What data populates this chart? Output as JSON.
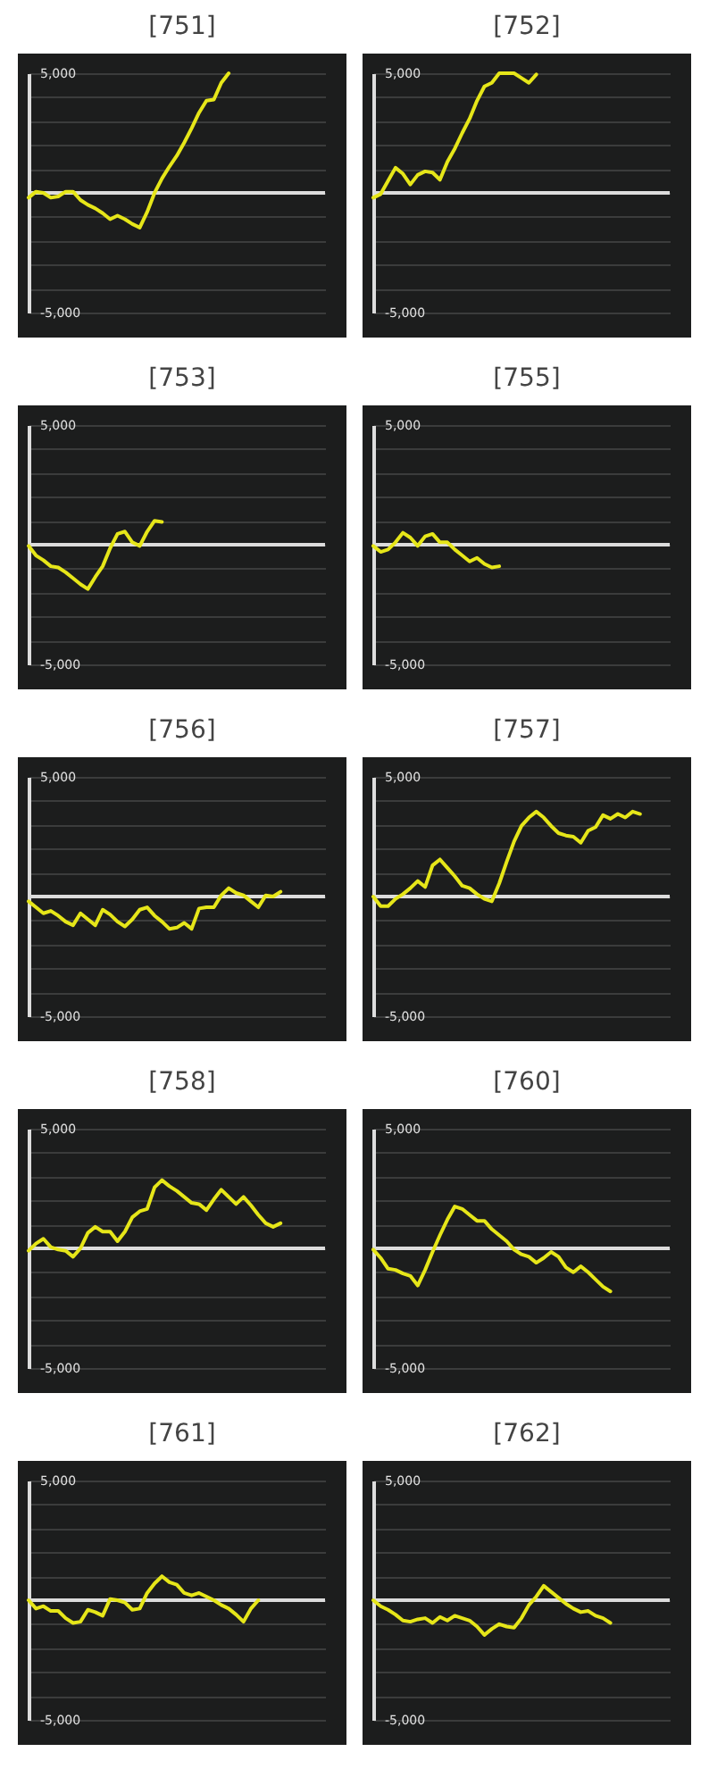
{
  "chart_data": [
    {
      "type": "line",
      "title": "[751]",
      "categories": [
        null,
        null,
        null,
        null,
        null,
        null,
        null,
        null,
        null,
        null,
        null,
        null,
        null,
        null,
        null,
        null,
        null,
        null,
        null,
        null,
        null,
        null,
        null,
        null,
        null,
        null,
        null,
        null,
        null,
        null,
        null,
        null,
        null,
        null,
        null,
        null,
        null,
        null,
        null,
        null,
        null
      ],
      "ylim": [
        -5000,
        5000
      ],
      "yticks": [
        {
          "value": -5000,
          "label": "-5,000"
        },
        {
          "value": -4000,
          "label": null
        },
        {
          "value": -3000,
          "label": null
        },
        {
          "value": -2000,
          "label": null
        },
        {
          "value": -1000,
          "label": null
        },
        {
          "value": 0,
          "label": null
        },
        {
          "value": 1000,
          "label": null
        },
        {
          "value": 2000,
          "label": null
        },
        {
          "value": 3000,
          "label": null
        },
        {
          "value": 4000,
          "label": null
        },
        {
          "value": 5000,
          "label": "5,000"
        }
      ],
      "grid": "y",
      "tick_labels": "y",
      "ref_lines": [
        {
          "axis": "y",
          "value": 0,
          "color": "#dcdcdc"
        }
      ],
      "series": [
        {
          "color": "#e6e619",
          "values": [
            -200,
            50,
            0,
            -200,
            -150,
            50,
            50,
            -300,
            -500,
            -650,
            -850,
            -1100,
            -950,
            -1100,
            -1300,
            -1450,
            -800,
            0,
            600,
            1100,
            1550,
            2100,
            2700,
            3350,
            3850,
            3900,
            4600,
            5000,
            null,
            null,
            null,
            null,
            null,
            null,
            null,
            null,
            null,
            null,
            null,
            null,
            null
          ]
        }
      ]
    },
    {
      "type": "line",
      "title": "[752]",
      "categories": [
        null,
        null,
        null,
        null,
        null,
        null,
        null,
        null,
        null,
        null,
        null,
        null,
        null,
        null,
        null,
        null,
        null,
        null,
        null,
        null,
        null,
        null,
        null,
        null,
        null,
        null,
        null,
        null,
        null,
        null,
        null,
        null,
        null,
        null,
        null,
        null,
        null,
        null,
        null,
        null,
        null
      ],
      "ylim": [
        -5000,
        5000
      ],
      "yticks": [
        {
          "value": -5000,
          "label": "-5,000"
        },
        {
          "value": -4000,
          "label": null
        },
        {
          "value": -3000,
          "label": null
        },
        {
          "value": -2000,
          "label": null
        },
        {
          "value": -1000,
          "label": null
        },
        {
          "value": 0,
          "label": null
        },
        {
          "value": 1000,
          "label": null
        },
        {
          "value": 2000,
          "label": null
        },
        {
          "value": 3000,
          "label": null
        },
        {
          "value": 4000,
          "label": null
        },
        {
          "value": 5000,
          "label": "5,000"
        }
      ],
      "grid": "y",
      "tick_labels": "y",
      "ref_lines": [
        {
          "axis": "y",
          "value": 0,
          "color": "#dcdcdc"
        }
      ],
      "series": [
        {
          "color": "#e6e619",
          "values": [
            -200,
            -50,
            500,
            1050,
            800,
            350,
            750,
            900,
            850,
            550,
            1300,
            1850,
            2500,
            3100,
            3850,
            4450,
            4600,
            5000,
            5000,
            5000,
            4800,
            4600,
            4950,
            null,
            null,
            null,
            null,
            null,
            null,
            null,
            null,
            null,
            null,
            null,
            null,
            null,
            null,
            null,
            null,
            null,
            null
          ]
        }
      ]
    },
    {
      "type": "line",
      "title": "[753]",
      "categories": [
        null,
        null,
        null,
        null,
        null,
        null,
        null,
        null,
        null,
        null,
        null,
        null,
        null,
        null,
        null,
        null,
        null,
        null,
        null,
        null,
        null,
        null,
        null,
        null,
        null,
        null,
        null,
        null,
        null,
        null,
        null,
        null,
        null,
        null,
        null,
        null,
        null,
        null,
        null,
        null,
        null
      ],
      "ylim": [
        -5000,
        5000
      ],
      "yticks": [
        {
          "value": -5000,
          "label": "-5,000"
        },
        {
          "value": -4000,
          "label": null
        },
        {
          "value": -3000,
          "label": null
        },
        {
          "value": -2000,
          "label": null
        },
        {
          "value": -1000,
          "label": null
        },
        {
          "value": 0,
          "label": null
        },
        {
          "value": 1000,
          "label": null
        },
        {
          "value": 2000,
          "label": null
        },
        {
          "value": 3000,
          "label": null
        },
        {
          "value": 4000,
          "label": null
        },
        {
          "value": 5000,
          "label": "5,000"
        }
      ],
      "grid": "y",
      "tick_labels": "y",
      "ref_lines": [
        {
          "axis": "y",
          "value": 0,
          "color": "#dcdcdc"
        }
      ],
      "series": [
        {
          "color": "#e6e619",
          "values": [
            -50,
            -450,
            -650,
            -900,
            -950,
            -1150,
            -1400,
            -1650,
            -1850,
            -1350,
            -900,
            -150,
            450,
            550,
            100,
            -50,
            550,
            1000,
            950,
            null,
            null,
            null,
            null,
            null,
            null,
            null,
            null,
            null,
            null,
            null,
            null,
            null,
            null,
            null,
            null,
            null,
            null,
            null,
            null,
            null,
            null
          ]
        }
      ]
    },
    {
      "type": "line",
      "title": "[755]",
      "categories": [
        null,
        null,
        null,
        null,
        null,
        null,
        null,
        null,
        null,
        null,
        null,
        null,
        null,
        null,
        null,
        null,
        null,
        null,
        null,
        null,
        null,
        null,
        null,
        null,
        null,
        null,
        null,
        null,
        null,
        null,
        null,
        null,
        null,
        null,
        null,
        null,
        null,
        null,
        null,
        null,
        null
      ],
      "ylim": [
        -5000,
        5000
      ],
      "yticks": [
        {
          "value": -5000,
          "label": "-5,000"
        },
        {
          "value": -4000,
          "label": null
        },
        {
          "value": -3000,
          "label": null
        },
        {
          "value": -2000,
          "label": null
        },
        {
          "value": -1000,
          "label": null
        },
        {
          "value": 0,
          "label": null
        },
        {
          "value": 1000,
          "label": null
        },
        {
          "value": 2000,
          "label": null
        },
        {
          "value": 3000,
          "label": null
        },
        {
          "value": 4000,
          "label": null
        },
        {
          "value": 5000,
          "label": "5,000"
        }
      ],
      "grid": "y",
      "tick_labels": "y",
      "ref_lines": [
        {
          "axis": "y",
          "value": 0,
          "color": "#dcdcdc"
        }
      ],
      "series": [
        {
          "color": "#e6e619",
          "values": [
            -50,
            -300,
            -200,
            100,
            500,
            300,
            -50,
            350,
            450,
            100,
            100,
            -200,
            -450,
            -700,
            -550,
            -800,
            -950,
            -900,
            null,
            null,
            null,
            null,
            null,
            null,
            null,
            null,
            null,
            null,
            null,
            null,
            null,
            null,
            null,
            null,
            null,
            null,
            null,
            null,
            null,
            null,
            null
          ]
        }
      ]
    },
    {
      "type": "line",
      "title": "[756]",
      "categories": [
        null,
        null,
        null,
        null,
        null,
        null,
        null,
        null,
        null,
        null,
        null,
        null,
        null,
        null,
        null,
        null,
        null,
        null,
        null,
        null,
        null,
        null,
        null,
        null,
        null,
        null,
        null,
        null,
        null,
        null,
        null,
        null,
        null,
        null,
        null,
        null,
        null,
        null,
        null,
        null,
        null
      ],
      "ylim": [
        -5000,
        5000
      ],
      "yticks": [
        {
          "value": -5000,
          "label": "-5,000"
        },
        {
          "value": -4000,
          "label": null
        },
        {
          "value": -3000,
          "label": null
        },
        {
          "value": -2000,
          "label": null
        },
        {
          "value": -1000,
          "label": null
        },
        {
          "value": 0,
          "label": null
        },
        {
          "value": 1000,
          "label": null
        },
        {
          "value": 2000,
          "label": null
        },
        {
          "value": 3000,
          "label": null
        },
        {
          "value": 4000,
          "label": null
        },
        {
          "value": 5000,
          "label": "5,000"
        }
      ],
      "grid": "y",
      "tick_labels": "y",
      "ref_lines": [
        {
          "axis": "y",
          "value": 0,
          "color": "#dcdcdc"
        }
      ],
      "series": [
        {
          "color": "#e6e619",
          "values": [
            -200,
            -450,
            -700,
            -600,
            -800,
            -1050,
            -1200,
            -700,
            -950,
            -1200,
            -550,
            -750,
            -1050,
            -1250,
            -950,
            -550,
            -450,
            -800,
            -1050,
            -1350,
            -1300,
            -1100,
            -1350,
            -500,
            -450,
            -450,
            50,
            350,
            150,
            50,
            -200,
            -450,
            50,
            0,
            200,
            null,
            null,
            null,
            null,
            null,
            null
          ]
        }
      ]
    },
    {
      "type": "line",
      "title": "[757]",
      "categories": [
        null,
        null,
        null,
        null,
        null,
        null,
        null,
        null,
        null,
        null,
        null,
        null,
        null,
        null,
        null,
        null,
        null,
        null,
        null,
        null,
        null,
        null,
        null,
        null,
        null,
        null,
        null,
        null,
        null,
        null,
        null,
        null,
        null,
        null,
        null,
        null,
        null,
        null,
        null,
        null,
        null
      ],
      "ylim": [
        -5000,
        5000
      ],
      "yticks": [
        {
          "value": -5000,
          "label": "-5,000"
        },
        {
          "value": -4000,
          "label": null
        },
        {
          "value": -3000,
          "label": null
        },
        {
          "value": -2000,
          "label": null
        },
        {
          "value": -1000,
          "label": null
        },
        {
          "value": 0,
          "label": null
        },
        {
          "value": 1000,
          "label": null
        },
        {
          "value": 2000,
          "label": null
        },
        {
          "value": 3000,
          "label": null
        },
        {
          "value": 4000,
          "label": null
        },
        {
          "value": 5000,
          "label": "5,000"
        }
      ],
      "grid": "y",
      "tick_labels": "y",
      "ref_lines": [
        {
          "axis": "y",
          "value": 0,
          "color": "#dcdcdc"
        }
      ],
      "series": [
        {
          "color": "#e6e619",
          "values": [
            0,
            -400,
            -400,
            -100,
            100,
            350,
            650,
            400,
            1300,
            1550,
            1200,
            850,
            450,
            350,
            100,
            -100,
            -200,
            550,
            1450,
            2300,
            2950,
            3300,
            3550,
            3300,
            2950,
            2650,
            2550,
            2500,
            2250,
            2750,
            2900,
            3400,
            3250,
            3450,
            3300,
            3550,
            3450,
            null,
            null,
            null,
            null
          ]
        }
      ]
    },
    {
      "type": "line",
      "title": "[758]",
      "categories": [
        null,
        null,
        null,
        null,
        null,
        null,
        null,
        null,
        null,
        null,
        null,
        null,
        null,
        null,
        null,
        null,
        null,
        null,
        null,
        null,
        null,
        null,
        null,
        null,
        null,
        null,
        null,
        null,
        null,
        null,
        null,
        null,
        null,
        null,
        null,
        null,
        null,
        null,
        null,
        null,
        null
      ],
      "ylim": [
        -5000,
        5000
      ],
      "yticks": [
        {
          "value": -5000,
          "label": "-5,000"
        },
        {
          "value": -4000,
          "label": null
        },
        {
          "value": -3000,
          "label": null
        },
        {
          "value": -2000,
          "label": null
        },
        {
          "value": -1000,
          "label": null
        },
        {
          "value": 0,
          "label": null
        },
        {
          "value": 1000,
          "label": null
        },
        {
          "value": 2000,
          "label": null
        },
        {
          "value": 3000,
          "label": null
        },
        {
          "value": 4000,
          "label": null
        },
        {
          "value": 5000,
          "label": "5,000"
        }
      ],
      "grid": "y",
      "tick_labels": "y",
      "ref_lines": [
        {
          "axis": "y",
          "value": 0,
          "color": "#dcdcdc"
        }
      ],
      "series": [
        {
          "color": "#e6e619",
          "values": [
            -100,
            200,
            400,
            50,
            -50,
            -100,
            -350,
            0,
            650,
            900,
            700,
            700,
            300,
            700,
            1300,
            1550,
            1650,
            2550,
            2850,
            2600,
            2400,
            2150,
            1900,
            1850,
            1600,
            2050,
            2450,
            2150,
            1850,
            2150,
            1800,
            1400,
            1050,
            900,
            1050,
            null,
            null,
            null,
            null,
            null,
            null
          ]
        }
      ]
    },
    {
      "type": "line",
      "title": "[760]",
      "categories": [
        null,
        null,
        null,
        null,
        null,
        null,
        null,
        null,
        null,
        null,
        null,
        null,
        null,
        null,
        null,
        null,
        null,
        null,
        null,
        null,
        null,
        null,
        null,
        null,
        null,
        null,
        null,
        null,
        null,
        null,
        null,
        null,
        null,
        null,
        null,
        null,
        null,
        null,
        null,
        null,
        null
      ],
      "ylim": [
        -5000,
        5000
      ],
      "yticks": [
        {
          "value": -5000,
          "label": "-5,000"
        },
        {
          "value": -4000,
          "label": null
        },
        {
          "value": -3000,
          "label": null
        },
        {
          "value": -2000,
          "label": null
        },
        {
          "value": -1000,
          "label": null
        },
        {
          "value": 0,
          "label": null
        },
        {
          "value": 1000,
          "label": null
        },
        {
          "value": 2000,
          "label": null
        },
        {
          "value": 3000,
          "label": null
        },
        {
          "value": 4000,
          "label": null
        },
        {
          "value": 5000,
          "label": "5,000"
        }
      ],
      "grid": "y",
      "tick_labels": "y",
      "ref_lines": [
        {
          "axis": "y",
          "value": 0,
          "color": "#dcdcdc"
        }
      ],
      "series": [
        {
          "color": "#e6e619",
          "values": [
            -50,
            -400,
            -850,
            -900,
            -1050,
            -1150,
            -1550,
            -900,
            -150,
            550,
            1200,
            1750,
            1650,
            1400,
            1150,
            1150,
            800,
            550,
            300,
            -50,
            -250,
            -350,
            -600,
            -400,
            -150,
            -350,
            -800,
            -1000,
            -750,
            -1000,
            -1300,
            -1600,
            -1800,
            null,
            null,
            null,
            null,
            null,
            null,
            null,
            null
          ]
        }
      ]
    },
    {
      "type": "line",
      "title": "[761]",
      "categories": [
        null,
        null,
        null,
        null,
        null,
        null,
        null,
        null,
        null,
        null,
        null,
        null,
        null,
        null,
        null,
        null,
        null,
        null,
        null,
        null,
        null,
        null,
        null,
        null,
        null,
        null,
        null,
        null,
        null,
        null,
        null,
        null,
        null,
        null,
        null,
        null,
        null,
        null,
        null,
        null,
        null
      ],
      "ylim": [
        -5000,
        5000
      ],
      "yticks": [
        {
          "value": -5000,
          "label": "-5,000"
        },
        {
          "value": -4000,
          "label": null
        },
        {
          "value": -3000,
          "label": null
        },
        {
          "value": -2000,
          "label": null
        },
        {
          "value": -1000,
          "label": null
        },
        {
          "value": 0,
          "label": null
        },
        {
          "value": 1000,
          "label": null
        },
        {
          "value": 2000,
          "label": null
        },
        {
          "value": 3000,
          "label": null
        },
        {
          "value": 4000,
          "label": null
        },
        {
          "value": 5000,
          "label": "5,000"
        }
      ],
      "grid": "y",
      "tick_labels": "y",
      "ref_lines": [
        {
          "axis": "y",
          "value": 0,
          "color": "#dcdcdc"
        }
      ],
      "series": [
        {
          "color": "#e6e619",
          "values": [
            0,
            -350,
            -250,
            -450,
            -450,
            -750,
            -950,
            -900,
            -400,
            -500,
            -650,
            50,
            0,
            -100,
            -400,
            -350,
            300,
            700,
            1000,
            750,
            650,
            300,
            200,
            300,
            150,
            0,
            -200,
            -350,
            -600,
            -900,
            -350,
            0,
            null,
            null,
            null,
            null,
            null,
            null,
            null,
            null,
            null
          ]
        }
      ]
    },
    {
      "type": "line",
      "title": "[762]",
      "categories": [
        null,
        null,
        null,
        null,
        null,
        null,
        null,
        null,
        null,
        null,
        null,
        null,
        null,
        null,
        null,
        null,
        null,
        null,
        null,
        null,
        null,
        null,
        null,
        null,
        null,
        null,
        null,
        null,
        null,
        null,
        null,
        null,
        null,
        null,
        null,
        null,
        null,
        null,
        null,
        null,
        null
      ],
      "ylim": [
        -5000,
        5000
      ],
      "yticks": [
        {
          "value": -5000,
          "label": "-5,000"
        },
        {
          "value": -4000,
          "label": null
        },
        {
          "value": -3000,
          "label": null
        },
        {
          "value": -2000,
          "label": null
        },
        {
          "value": -1000,
          "label": null
        },
        {
          "value": 0,
          "label": null
        },
        {
          "value": 1000,
          "label": null
        },
        {
          "value": 2000,
          "label": null
        },
        {
          "value": 3000,
          "label": null
        },
        {
          "value": 4000,
          "label": null
        },
        {
          "value": 5000,
          "label": "5,000"
        }
      ],
      "grid": "y",
      "tick_labels": "y",
      "ref_lines": [
        {
          "axis": "y",
          "value": 0,
          "color": "#dcdcdc"
        }
      ],
      "series": [
        {
          "color": "#e6e619",
          "values": [
            0,
            -250,
            -400,
            -600,
            -850,
            -900,
            -800,
            -750,
            -950,
            -700,
            -850,
            -650,
            -750,
            -850,
            -1100,
            -1450,
            -1200,
            -1000,
            -1100,
            -1150,
            -750,
            -200,
            150,
            600,
            350,
            100,
            -150,
            -350,
            -500,
            -450,
            -650,
            -750,
            -950,
            null,
            null,
            null,
            null,
            null,
            null,
            null,
            null
          ]
        }
      ]
    }
  ]
}
